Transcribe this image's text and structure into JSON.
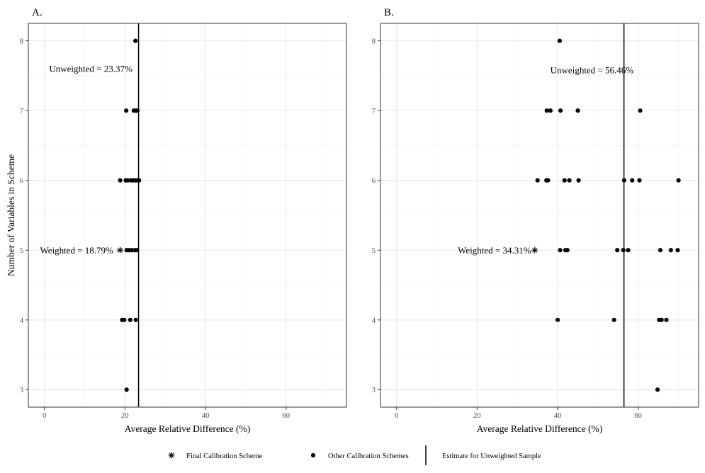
{
  "chart_data": [
    {
      "type": "scatter",
      "panel_label": "A.",
      "xlabel": "Average Relative Difference (%)",
      "ylabel": "Number of Variables in Scheme",
      "xlim": [
        -4,
        75
      ],
      "ylim": [
        2.75,
        8.25
      ],
      "xticks": [
        0,
        20,
        40,
        60
      ],
      "yticks": [
        3,
        4,
        5,
        6,
        7,
        8
      ],
      "grid": true,
      "series": [
        {
          "name": "Other Calibration Schemes",
          "marker": "dot",
          "points": [
            {
              "x": 22.6,
              "y": 8
            },
            {
              "x": 20.3,
              "y": 7
            },
            {
              "x": 22.2,
              "y": 7
            },
            {
              "x": 22.7,
              "y": 7
            },
            {
              "x": 23.1,
              "y": 7
            },
            {
              "x": 18.8,
              "y": 6
            },
            {
              "x": 20.2,
              "y": 6
            },
            {
              "x": 20.7,
              "y": 6
            },
            {
              "x": 21.5,
              "y": 6
            },
            {
              "x": 22.0,
              "y": 6
            },
            {
              "x": 22.6,
              "y": 6
            },
            {
              "x": 23.1,
              "y": 6
            },
            {
              "x": 23.5,
              "y": 6
            },
            {
              "x": 20.4,
              "y": 5
            },
            {
              "x": 21.0,
              "y": 5
            },
            {
              "x": 21.7,
              "y": 5
            },
            {
              "x": 22.5,
              "y": 5
            },
            {
              "x": 23.0,
              "y": 5
            },
            {
              "x": 19.3,
              "y": 4
            },
            {
              "x": 19.8,
              "y": 4
            },
            {
              "x": 21.3,
              "y": 4
            },
            {
              "x": 22.7,
              "y": 4
            },
            {
              "x": 20.4,
              "y": 3
            }
          ]
        },
        {
          "name": "Final Calibration Scheme",
          "marker": "asterisk",
          "points": [
            {
              "x": 18.79,
              "y": 5
            }
          ]
        }
      ],
      "reference_line": {
        "name": "Estimate for Unweighted Sample",
        "x": 23.37
      },
      "annotations": [
        {
          "text": "Unweighted = 23.37%",
          "x": 11.5,
          "y": 7.6
        },
        {
          "text": "Weighted = 18.79%",
          "x": 8,
          "y": 5
        }
      ]
    },
    {
      "type": "scatter",
      "panel_label": "B.",
      "xlabel": "Average Relative Difference (%)",
      "ylabel": "",
      "xlim": [
        -4,
        75
      ],
      "ylim": [
        2.75,
        8.25
      ],
      "xticks": [
        0,
        20,
        40,
        60
      ],
      "yticks": [
        3,
        4,
        5,
        6,
        7,
        8
      ],
      "grid": true,
      "series": [
        {
          "name": "Other Calibration Schemes",
          "marker": "dot",
          "points": [
            {
              "x": 40.5,
              "y": 8
            },
            {
              "x": 37.3,
              "y": 7
            },
            {
              "x": 38.2,
              "y": 7
            },
            {
              "x": 40.7,
              "y": 7
            },
            {
              "x": 45.0,
              "y": 7
            },
            {
              "x": 60.5,
              "y": 7
            },
            {
              "x": 35.0,
              "y": 6
            },
            {
              "x": 37.2,
              "y": 6
            },
            {
              "x": 37.6,
              "y": 6
            },
            {
              "x": 41.7,
              "y": 6
            },
            {
              "x": 42.9,
              "y": 6
            },
            {
              "x": 45.2,
              "y": 6
            },
            {
              "x": 56.5,
              "y": 6
            },
            {
              "x": 58.5,
              "y": 6
            },
            {
              "x": 60.3,
              "y": 6
            },
            {
              "x": 70.0,
              "y": 6
            },
            {
              "x": 40.6,
              "y": 5
            },
            {
              "x": 41.9,
              "y": 5
            },
            {
              "x": 42.4,
              "y": 5
            },
            {
              "x": 54.8,
              "y": 5
            },
            {
              "x": 56.3,
              "y": 5
            },
            {
              "x": 57.5,
              "y": 5
            },
            {
              "x": 65.5,
              "y": 5
            },
            {
              "x": 68.1,
              "y": 5
            },
            {
              "x": 69.8,
              "y": 5
            },
            {
              "x": 40.0,
              "y": 4
            },
            {
              "x": 54.0,
              "y": 4
            },
            {
              "x": 65.2,
              "y": 4
            },
            {
              "x": 65.8,
              "y": 4
            },
            {
              "x": 67.0,
              "y": 4
            },
            {
              "x": 64.8,
              "y": 3
            }
          ]
        },
        {
          "name": "Final Calibration Scheme",
          "marker": "asterisk",
          "points": [
            {
              "x": 34.31,
              "y": 5
            }
          ]
        }
      ],
      "reference_line": {
        "name": "Estimate for Unweighted Sample",
        "x": 56.46
      },
      "annotations": [
        {
          "text": "Unweighted = 56.46%",
          "x": 48.5,
          "y": 7.58
        },
        {
          "text": "Weighted = 34.31%",
          "x": 24.3,
          "y": 5
        }
      ]
    }
  ],
  "legend": {
    "position": "bottom",
    "items": [
      {
        "marker": "asterisk",
        "label": "Final Calibration Scheme"
      },
      {
        "marker": "dot",
        "label": "Other Calibration Schemes"
      },
      {
        "marker": "vline",
        "label": "Estimate for Unweighted Sample"
      }
    ]
  },
  "colors": {
    "panel_border": "#333333",
    "grid_major": "#e6e6e6",
    "grid_minor": "#f2f2f2",
    "points": "#000000",
    "text": "#000000",
    "tick_label": "#4d4d4d"
  }
}
